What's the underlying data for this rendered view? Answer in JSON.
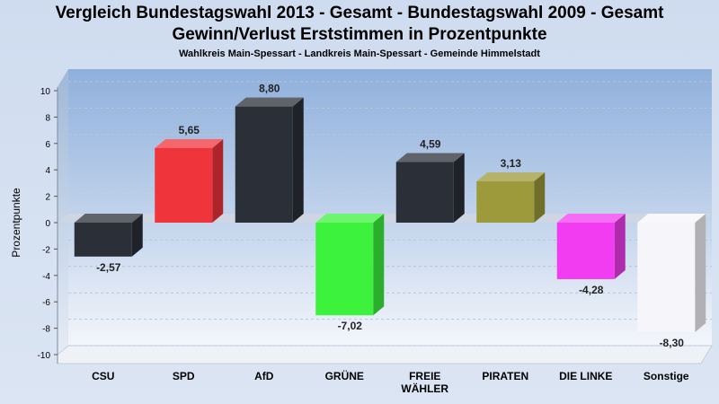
{
  "title": "Vergleich Bundestagswahl 2013 - Gesamt - Bundestagswahl 2009 - Gesamt",
  "title2": "Gewinn/Verlust Erststimmen in Prozentpunkte",
  "subtitle": "Wahlkreis Main-Spessart - Landkreis Main-Spessart - Gemeinde Himmelstadt",
  "chart_data": {
    "type": "bar",
    "title": "Vergleich Bundestagswahl 2013 - Gesamt - Bundestagswahl 2009 - Gesamt",
    "subtitle": "Gewinn/Verlust Erststimmen in Prozentpunkte",
    "ylabel": "Prozentpunkte",
    "xlabel": "",
    "ylim": [
      -10,
      10
    ],
    "yticks": [
      10,
      8,
      6,
      4,
      2,
      0,
      -2,
      -4,
      -6,
      -8,
      -10
    ],
    "grid": true,
    "categories": [
      "CSU",
      "SPD",
      "AfD",
      "GRÜNE",
      "FREIE WÄHLER",
      "PIRATEN",
      "DIE LINKE",
      "Sonstige"
    ],
    "category_lines": [
      [
        "CSU"
      ],
      [
        "SPD"
      ],
      [
        "AfD"
      ],
      [
        "GRÜNE"
      ],
      [
        "FREIE",
        "WÄHLER"
      ],
      [
        "PIRATEN"
      ],
      [
        "DIE LINKE"
      ],
      [
        "Sonstige"
      ]
    ],
    "values": [
      -2.57,
      5.65,
      8.8,
      -7.02,
      4.59,
      3.13,
      -4.28,
      -8.3
    ],
    "value_labels": [
      "-2,57",
      "5,65",
      "8,80",
      "-7,02",
      "4,59",
      "3,13",
      "-4,28",
      "-8,30"
    ],
    "colors": [
      "#2b2f38",
      "#f0343c",
      "#2b2f38",
      "#3cf23c",
      "#2b2f38",
      "#9c9a3a",
      "#f23cf2",
      "#f6f6fa"
    ]
  }
}
